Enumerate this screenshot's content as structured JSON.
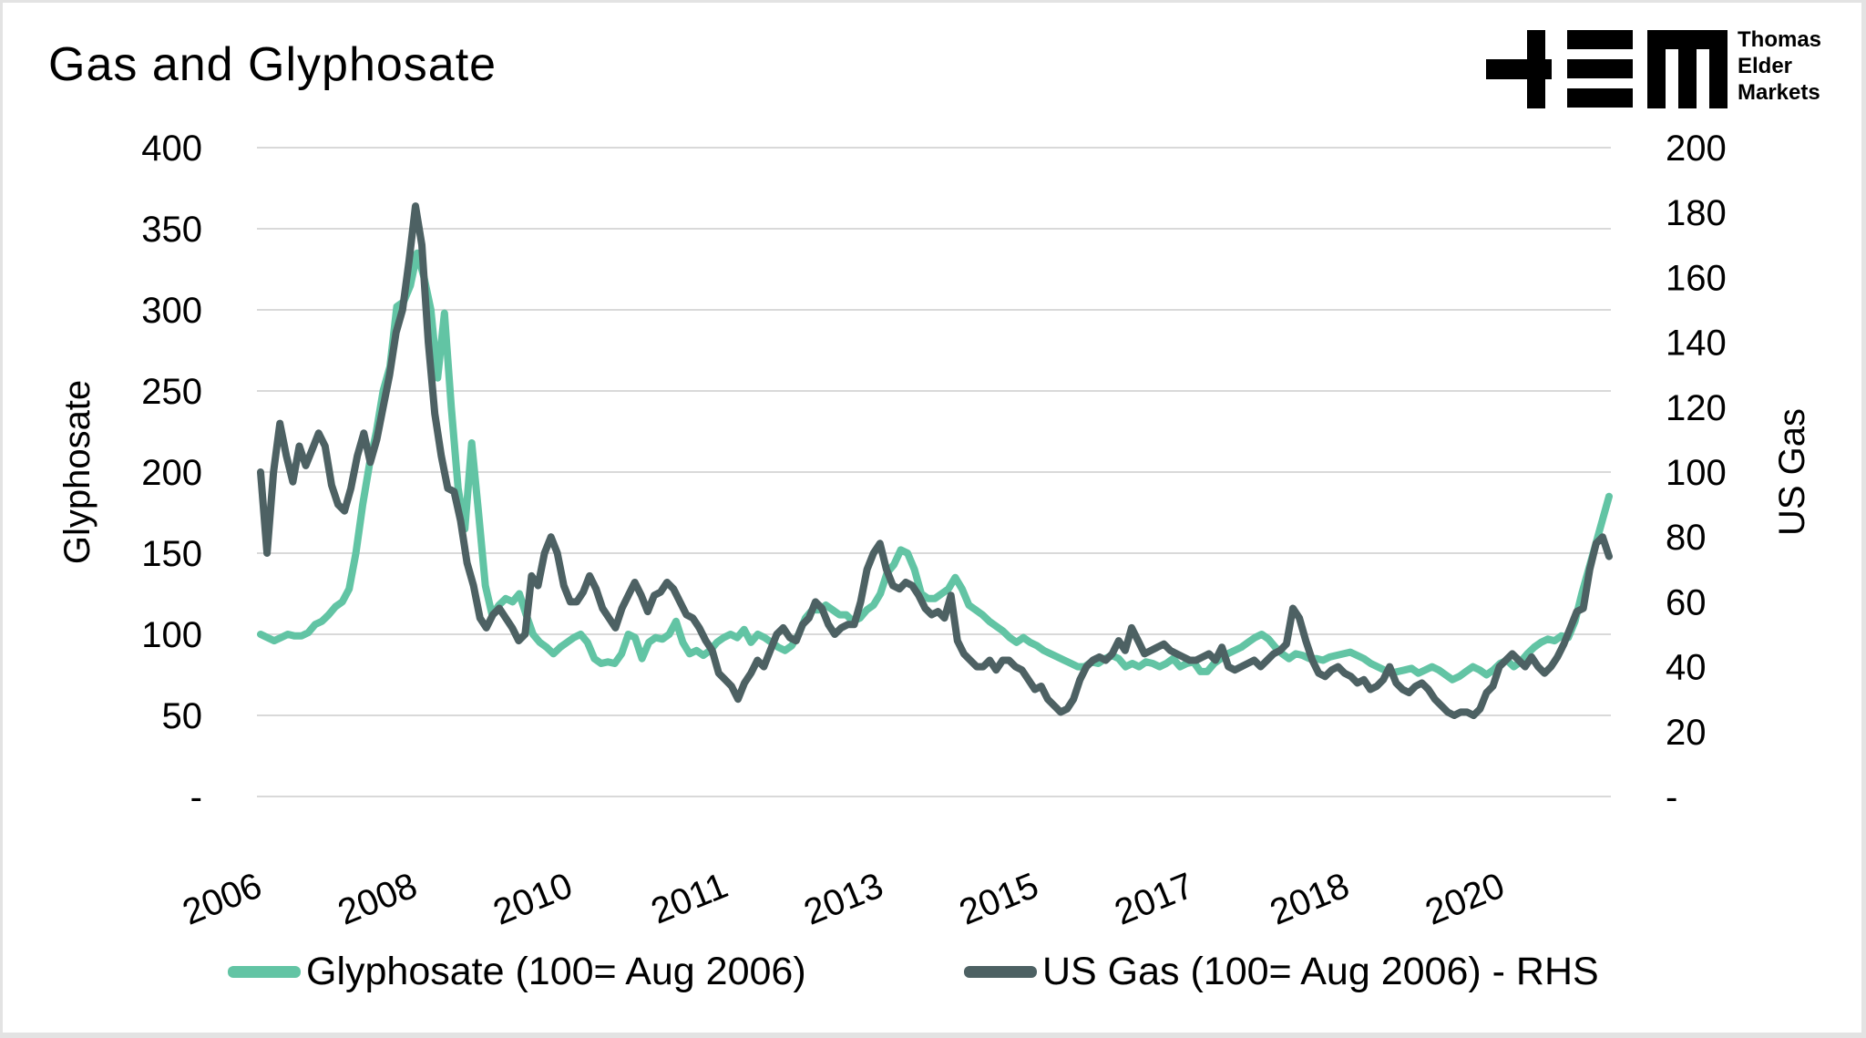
{
  "title": "Gas and Glyphosate",
  "logo": {
    "name": "TEM",
    "lines": [
      "Thomas",
      "Elder",
      "Markets"
    ]
  },
  "colors": {
    "glyphosate": "#62c4a4",
    "gas": "#4d6163",
    "grid": "#d9d9d9"
  },
  "chart_data": {
    "type": "line",
    "title": "Gas and Glyphosate",
    "xlabel": "",
    "ylabel": "Glyphosate",
    "y2label": "US Gas",
    "ylim": [
      0,
      400
    ],
    "y2lim": [
      0,
      200
    ],
    "yticks": [
      "-",
      "50",
      "100",
      "150",
      "200",
      "250",
      "300",
      "350",
      "400"
    ],
    "y2ticks": [
      "-",
      "20",
      "40",
      "60",
      "80",
      "100",
      "120",
      "140",
      "160",
      "180",
      "200"
    ],
    "xticks": [
      "2006",
      "2008",
      "2010",
      "2011",
      "2013",
      "2015",
      "2017",
      "2018",
      "2020"
    ],
    "grid": true,
    "legend_position": "bottom",
    "x_start": "Aug 2006",
    "x_frequency": "monthly",
    "series": [
      {
        "name": "Glyphosate (100= Aug 2006)",
        "axis": "left",
        "values": [
          100,
          98,
          96,
          98,
          100,
          99,
          99,
          101,
          106,
          108,
          112,
          117,
          120,
          128,
          150,
          180,
          205,
          225,
          250,
          265,
          302,
          305,
          315,
          335,
          320,
          300,
          258,
          298,
          240,
          190,
          165,
          218,
          175,
          130,
          112,
          118,
          122,
          120,
          125,
          112,
          100,
          95,
          92,
          88,
          92,
          95,
          98,
          100,
          95,
          85,
          82,
          83,
          82,
          88,
          100,
          98,
          85,
          95,
          98,
          97,
          100,
          108,
          95,
          88,
          90,
          87,
          90,
          95,
          98,
          100,
          98,
          103,
          95,
          100,
          98,
          95,
          92,
          90,
          93,
          100,
          110,
          115,
          115,
          118,
          115,
          112,
          112,
          108,
          110,
          115,
          118,
          125,
          138,
          143,
          152,
          150,
          140,
          125,
          122,
          122,
          125,
          128,
          135,
          128,
          118,
          115,
          112,
          108,
          105,
          102,
          98,
          95,
          98,
          95,
          93,
          90,
          88,
          86,
          84,
          82,
          80,
          80,
          83,
          82,
          85,
          87,
          85,
          80,
          82,
          80,
          83,
          82,
          80,
          82,
          85,
          80,
          82,
          83,
          77,
          77,
          82,
          85,
          88,
          90,
          92,
          95,
          98,
          100,
          97,
          92,
          88,
          85,
          88,
          87,
          85,
          85,
          84,
          86,
          87,
          88,
          89,
          87,
          85,
          82,
          80,
          78,
          76,
          77,
          78,
          79,
          76,
          78,
          80,
          78,
          75,
          72,
          74,
          77,
          80,
          78,
          75,
          78,
          82,
          84,
          80,
          83,
          88,
          92,
          95,
          97,
          96,
          99,
          98,
          108,
          125,
          140,
          155,
          170,
          185
        ]
      },
      {
        "name": "US Gas (100= Aug 2006) - RHS",
        "axis": "right",
        "values": [
          100,
          75,
          100,
          115,
          105,
          97,
          108,
          102,
          107,
          112,
          108,
          96,
          90,
          88,
          95,
          105,
          112,
          103,
          110,
          120,
          130,
          143,
          150,
          165,
          182,
          170,
          140,
          118,
          105,
          95,
          94,
          85,
          72,
          65,
          55,
          52,
          56,
          58,
          55,
          52,
          48,
          50,
          68,
          65,
          75,
          80,
          75,
          65,
          60,
          60,
          63,
          68,
          64,
          58,
          55,
          52,
          58,
          62,
          66,
          62,
          57,
          62,
          63,
          66,
          64,
          60,
          56,
          55,
          52,
          48,
          45,
          38,
          36,
          34,
          30,
          35,
          38,
          42,
          40,
          45,
          50,
          52,
          49,
          48,
          53,
          55,
          60,
          58,
          53,
          50,
          52,
          53,
          53,
          60,
          70,
          75,
          78,
          70,
          65,
          64,
          66,
          65,
          62,
          58,
          56,
          57,
          55,
          62,
          48,
          44,
          42,
          40,
          40,
          42,
          39,
          42,
          42,
          40,
          39,
          36,
          33,
          34,
          30,
          28,
          26,
          27,
          30,
          36,
          40,
          42,
          43,
          42,
          44,
          48,
          45,
          52,
          48,
          44,
          45,
          46,
          47,
          45,
          44,
          43,
          42,
          42,
          43,
          44,
          42,
          46,
          40,
          39,
          40,
          41,
          42,
          40,
          42,
          44,
          45,
          47,
          58,
          55,
          48,
          42,
          38,
          37,
          39,
          40,
          38,
          37,
          35,
          36,
          33,
          34,
          36,
          40,
          35,
          33,
          32,
          34,
          35,
          33,
          30,
          28,
          26,
          25,
          26,
          26,
          25,
          27,
          32,
          34,
          40,
          42,
          44,
          42,
          40,
          43,
          40,
          38,
          40,
          43,
          47,
          52,
          57,
          58,
          70,
          78,
          80,
          74
        ]
      }
    ]
  },
  "legend": [
    {
      "label": "Glyphosate (100= Aug 2006)",
      "series": "glyphosate"
    },
    {
      "label": "US Gas (100= Aug 2006) - RHS",
      "series": "gas"
    }
  ]
}
